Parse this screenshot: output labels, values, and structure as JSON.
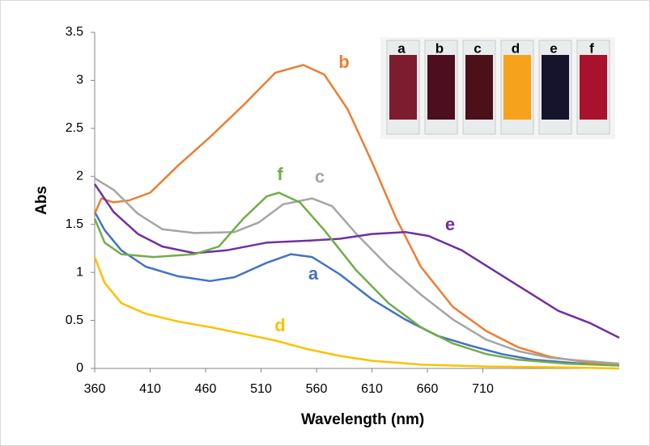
{
  "chart_data": {
    "type": "line",
    "x_label": "Wavelength (nm)",
    "y_label": "Abs",
    "xlim": [
      360,
      833
    ],
    "ylim": [
      0,
      3.5
    ],
    "xticks": [
      360,
      410,
      460,
      510,
      560,
      610,
      660,
      710
    ],
    "yticks": [
      0,
      0.5,
      1,
      1.5,
      2,
      2.5,
      3,
      3.5
    ],
    "grid": false,
    "series": [
      {
        "name": "a",
        "color": "#4472c4",
        "x": [
          360,
          369,
          384,
          406,
          435,
          464,
          486,
          515,
          537,
          556,
          581,
          610,
          640,
          669,
          698,
          727,
          756,
          800,
          833
        ],
        "values": [
          1.63,
          1.44,
          1.23,
          1.06,
          0.96,
          0.91,
          0.95,
          1.1,
          1.19,
          1.16,
          0.98,
          0.72,
          0.51,
          0.34,
          0.24,
          0.15,
          0.09,
          0.05,
          0.03
        ]
      },
      {
        "name": "b",
        "color": "#ed7d31",
        "x": [
          360,
          366,
          377,
          391,
          410,
          435,
          464,
          494,
          523,
          548,
          567,
          588,
          610,
          632,
          654,
          683,
          713,
          742,
          771,
          800,
          833
        ],
        "values": [
          1.61,
          1.77,
          1.73,
          1.75,
          1.83,
          2.11,
          2.41,
          2.74,
          3.08,
          3.16,
          3.06,
          2.7,
          2.15,
          1.56,
          1.06,
          0.64,
          0.39,
          0.22,
          0.12,
          0.07,
          0.03
        ]
      },
      {
        "name": "c",
        "color": "#a5a5a5",
        "x": [
          360,
          377,
          399,
          421,
          450,
          486,
          508,
          530,
          556,
          574,
          596,
          625,
          654,
          683,
          713,
          742,
          771,
          800,
          833
        ],
        "values": [
          1.98,
          1.86,
          1.61,
          1.45,
          1.41,
          1.42,
          1.52,
          1.71,
          1.77,
          1.69,
          1.4,
          1.06,
          0.77,
          0.51,
          0.3,
          0.18,
          0.11,
          0.08,
          0.05
        ]
      },
      {
        "name": "d",
        "color": "#ffc000",
        "x": [
          360,
          369,
          384,
          406,
          435,
          464,
          494,
          523,
          552,
          581,
          610,
          654,
          713,
          786,
          833
        ],
        "values": [
          1.16,
          0.89,
          0.68,
          0.57,
          0.49,
          0.43,
          0.36,
          0.29,
          0.2,
          0.13,
          0.08,
          0.04,
          0.02,
          0.01,
          0
        ]
      },
      {
        "name": "e",
        "color": "#7030a0",
        "x": [
          360,
          377,
          399,
          421,
          450,
          479,
          515,
          552,
          581,
          610,
          640,
          661,
          691,
          720,
          749,
          778,
          807,
          833
        ],
        "values": [
          1.92,
          1.63,
          1.4,
          1.27,
          1.2,
          1.23,
          1.31,
          1.33,
          1.35,
          1.4,
          1.42,
          1.38,
          1.23,
          1.02,
          0.81,
          0.6,
          0.47,
          0.32
        ]
      },
      {
        "name": "f",
        "color": "#70ad47",
        "x": [
          360,
          369,
          384,
          413,
          450,
          472,
          494,
          515,
          526,
          545,
          567,
          596,
          625,
          654,
          683,
          713,
          742,
          786,
          833
        ],
        "values": [
          1.56,
          1.31,
          1.19,
          1.16,
          1.19,
          1.27,
          1.56,
          1.79,
          1.83,
          1.73,
          1.44,
          1.02,
          0.68,
          0.43,
          0.26,
          0.15,
          0.09,
          0.05,
          0.03
        ]
      }
    ]
  }
}
